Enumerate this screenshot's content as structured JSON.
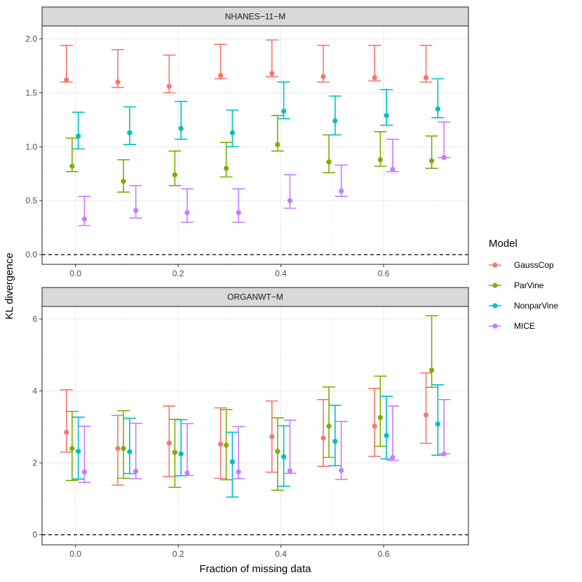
{
  "chart_data": {
    "type": "errorbar",
    "xlabel": "Fraction of missing data",
    "ylabel": "KL divergence",
    "x_ticks": [
      "0.0",
      "0.2",
      "0.4",
      "0.6"
    ],
    "x_tick_values": [
      0.0,
      0.2,
      0.4,
      0.6
    ],
    "x_range": [
      -0.065,
      0.765
    ],
    "legend": {
      "title": "Model",
      "placement": "right",
      "entries": [
        "GaussCop",
        "ParVine",
        "NonparVine",
        "MICE"
      ]
    },
    "reference_line": {
      "y": 0,
      "style": "dashed"
    },
    "fractions": [
      0.0,
      0.1,
      0.2,
      0.3,
      0.4,
      0.5,
      0.6,
      0.7
    ],
    "panels": [
      {
        "title": "NHANES−11−M",
        "y_range": [
          -0.09,
          2.12
        ],
        "y_ticks": [
          "0.0",
          "0.5",
          "1.0",
          "1.5",
          "2.0"
        ],
        "y_tick_values": [
          0,
          0.5,
          1.0,
          1.5,
          2.0
        ],
        "series": [
          {
            "name": "GaussCop",
            "color": "#F8766D",
            "mean": [
              1.62,
              1.6,
              1.56,
              1.66,
              1.68,
              1.65,
              1.64,
              1.64
            ],
            "lower": [
              1.6,
              1.55,
              1.5,
              1.63,
              1.65,
              1.6,
              1.61,
              1.6
            ],
            "upper": [
              1.94,
              1.9,
              1.85,
              1.95,
              1.99,
              1.94,
              1.94,
              1.94
            ]
          },
          {
            "name": "ParVine",
            "color": "#7CAE00",
            "mean": [
              0.82,
              0.68,
              0.74,
              0.8,
              1.02,
              0.86,
              0.88,
              0.87
            ],
            "lower": [
              0.77,
              0.58,
              0.64,
              0.72,
              0.96,
              0.76,
              0.82,
              0.8
            ],
            "upper": [
              1.08,
              0.88,
              0.96,
              1.04,
              1.29,
              1.11,
              1.14,
              1.1
            ]
          },
          {
            "name": "NonparVine",
            "color": "#00BFC4",
            "mean": [
              1.1,
              1.13,
              1.17,
              1.13,
              1.33,
              1.24,
              1.29,
              1.35
            ],
            "lower": [
              0.98,
              1.02,
              1.07,
              1.0,
              1.26,
              1.11,
              1.2,
              1.27
            ],
            "upper": [
              1.32,
              1.37,
              1.42,
              1.34,
              1.6,
              1.47,
              1.53,
              1.63
            ]
          },
          {
            "name": "MICE",
            "color": "#C77CFF",
            "mean": [
              0.33,
              0.41,
              0.39,
              0.39,
              0.5,
              0.59,
              0.79,
              0.9
            ],
            "lower": [
              0.27,
              0.34,
              0.3,
              0.3,
              0.43,
              0.54,
              0.77,
              0.9
            ],
            "upper": [
              0.54,
              0.64,
              0.61,
              0.61,
              0.74,
              0.83,
              1.07,
              1.23
            ]
          }
        ]
      },
      {
        "title": "ORGANWT−M",
        "y_range": [
          -0.28,
          6.35
        ],
        "y_ticks": [
          "0",
          "2",
          "4",
          "6"
        ],
        "y_tick_values": [
          0,
          2,
          4,
          6
        ],
        "series": [
          {
            "name": "GaussCop",
            "color": "#F8766D",
            "mean": [
              2.85,
              2.4,
              2.55,
              2.52,
              2.73,
              2.69,
              3.02,
              3.33
            ],
            "lower": [
              2.3,
              1.38,
              1.62,
              1.57,
              1.74,
              1.9,
              2.18,
              2.54
            ],
            "upper": [
              4.03,
              3.32,
              3.58,
              3.53,
              3.72,
              3.76,
              4.07,
              4.5
            ]
          },
          {
            "name": "ParVine",
            "color": "#7CAE00",
            "mean": [
              2.4,
              2.4,
              2.29,
              2.49,
              2.32,
              3.02,
              3.26,
              4.58
            ],
            "lower": [
              1.51,
              1.57,
              1.32,
              1.53,
              1.24,
              2.15,
              2.46,
              4.1
            ],
            "upper": [
              3.43,
              3.45,
              3.21,
              3.48,
              3.25,
              4.11,
              4.41,
              6.09
            ]
          },
          {
            "name": "NonparVine",
            "color": "#00BFC4",
            "mean": [
              2.32,
              2.31,
              2.25,
              2.03,
              2.17,
              2.6,
              2.76,
              3.08
            ],
            "lower": [
              1.55,
              1.7,
              1.64,
              1.05,
              1.35,
              1.92,
              2.11,
              2.21
            ],
            "upper": [
              3.27,
              3.24,
              3.2,
              2.85,
              3.03,
              3.6,
              3.85,
              4.17
            ]
          },
          {
            "name": "MICE",
            "color": "#C77CFF",
            "mean": [
              1.75,
              1.77,
              1.72,
              1.75,
              1.78,
              1.79,
              2.15,
              2.25
            ],
            "lower": [
              1.46,
              1.56,
              1.65,
              1.56,
              1.71,
              1.54,
              2.07,
              2.25
            ],
            "upper": [
              3.02,
              3.1,
              3.09,
              3.01,
              3.19,
              3.15,
              3.58,
              3.76
            ]
          }
        ]
      }
    ]
  }
}
